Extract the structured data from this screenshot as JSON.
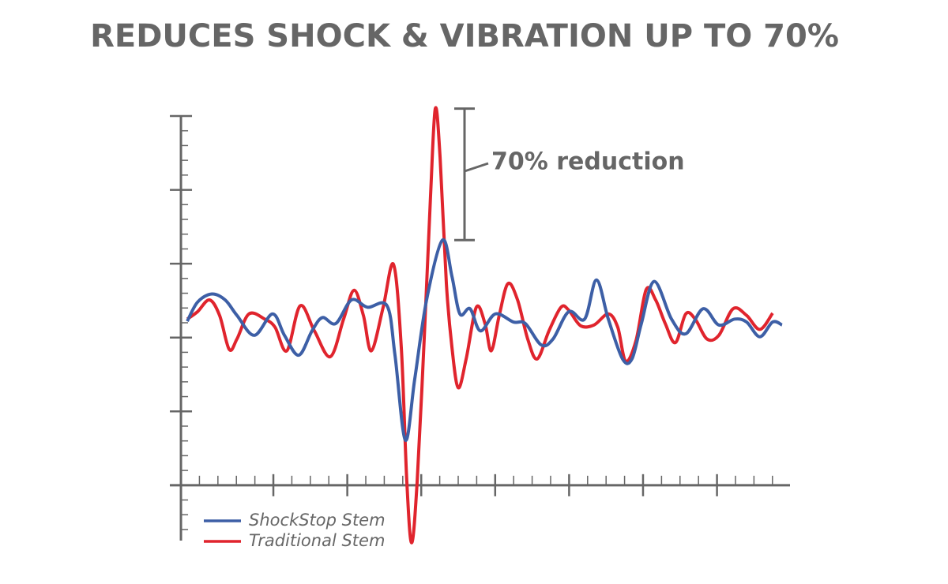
{
  "chart_data": {
    "type": "line",
    "title": "REDUCES SHOCK & VIBRATION UP TO 70%",
    "annotation": "70% reduction",
    "xlim": [
      -0.6,
      32.95
    ],
    "ylim": [
      -0.75,
      5
    ],
    "xticks": [
      1,
      2,
      3,
      4,
      5,
      6,
      7,
      8,
      9,
      10,
      11,
      12,
      13,
      14,
      15,
      16,
      17,
      18,
      19,
      20,
      21,
      22,
      23,
      24,
      25,
      26,
      27,
      28,
      29,
      30,
      31,
      32
    ],
    "xticks_major": [
      5,
      9,
      13,
      17,
      21,
      25,
      29
    ],
    "yticks": [
      -0.6,
      -0.4,
      -0.2,
      0.2,
      0.4,
      0.6,
      0.8,
      1,
      1.2,
      1.4,
      1.6,
      1.8,
      2,
      2.2,
      2.4,
      2.6,
      2.8,
      3,
      3.2,
      3.4,
      3.6,
      3.8,
      4,
      4.2,
      4.4,
      4.6,
      4.8,
      5
    ],
    "yticks_major": [
      1,
      2,
      3,
      4,
      5
    ],
    "series": [
      {
        "name": "ShockStop Stem",
        "color": "#3d5fa6",
        "x": [
          0.34,
          0.9,
          1.67,
          2.39,
          3.03,
          3.97,
          4.96,
          5.6,
          6.37,
          7.09,
          7.65,
          8.38,
          9.23,
          10.09,
          11.15,
          11.58,
          12.14,
          12.65,
          13.29,
          14.15,
          14.66,
          15.09,
          15.64,
          16.2,
          17.01,
          17.99,
          18.63,
          19.49,
          20.13,
          20.98,
          21.84,
          22.48,
          23.12,
          23.89,
          24.4,
          24.91,
          25.6,
          26.54,
          27.31,
          28.25,
          29.1,
          29.96,
          30.6,
          31.32,
          32.01,
          32.52
        ],
        "values": [
          2.22,
          2.48,
          2.59,
          2.51,
          2.3,
          2.03,
          2.32,
          2.03,
          1.76,
          2.09,
          2.27,
          2.19,
          2.51,
          2.41,
          2.43,
          1.76,
          0.61,
          1.44,
          2.51,
          3.32,
          2.83,
          2.32,
          2.39,
          2.09,
          2.32,
          2.21,
          2.19,
          1.9,
          1.98,
          2.35,
          2.25,
          2.78,
          2.25,
          1.71,
          1.71,
          2.19,
          2.76,
          2.25,
          2.05,
          2.39,
          2.17,
          2.25,
          2.21,
          2.01,
          2.21,
          2.17
        ]
      },
      {
        "name": "Traditional Stem",
        "color": "#e0242d",
        "x": [
          0.34,
          0.9,
          1.54,
          2.09,
          2.61,
          3.03,
          3.68,
          4.53,
          5.09,
          5.73,
          6.45,
          7.22,
          8.08,
          8.8,
          9.36,
          9.87,
          10.3,
          10.94,
          11.5,
          11.92,
          12.22,
          12.48,
          12.78,
          13.16,
          13.5,
          13.76,
          14.02,
          14.36,
          14.66,
          15.0,
          15.43,
          15.98,
          16.45,
          16.79,
          17.22,
          17.69,
          18.21,
          18.76,
          19.27,
          19.91,
          20.56,
          20.98,
          21.62,
          22.35,
          23.12,
          23.63,
          24.06,
          24.62,
          25.17,
          25.68,
          26.2,
          26.75,
          27.31,
          27.82,
          28.46,
          29.1,
          29.87,
          30.6,
          31.32,
          32.01
        ],
        "values": [
          2.25,
          2.35,
          2.51,
          2.3,
          1.84,
          1.98,
          2.32,
          2.25,
          2.14,
          1.82,
          2.43,
          2.09,
          1.74,
          2.25,
          2.64,
          2.3,
          1.82,
          2.41,
          2.99,
          1.87,
          0.05,
          -0.78,
          0.05,
          1.98,
          3.9,
          5.1,
          4.44,
          2.73,
          1.87,
          1.32,
          1.71,
          2.41,
          2.19,
          1.82,
          2.3,
          2.73,
          2.51,
          1.98,
          1.71,
          2.09,
          2.41,
          2.37,
          2.16,
          2.17,
          2.32,
          2.14,
          1.68,
          1.96,
          2.65,
          2.51,
          2.19,
          1.93,
          2.32,
          2.25,
          1.98,
          2.03,
          2.39,
          2.3,
          2.11,
          2.33
        ]
      }
    ]
  }
}
